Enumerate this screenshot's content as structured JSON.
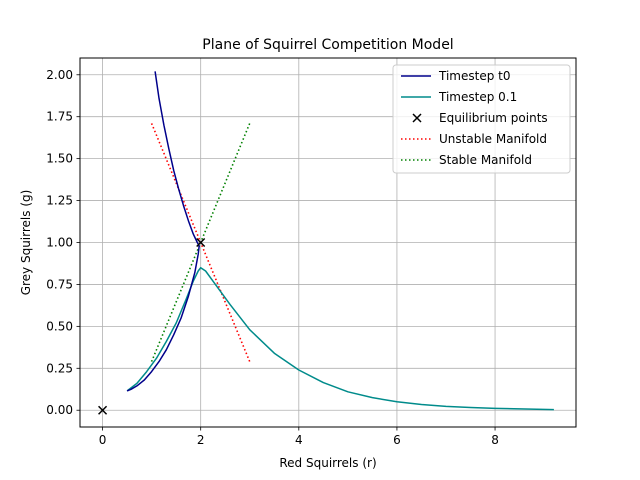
{
  "chart_data": {
    "type": "line",
    "title": "Plane of Squirrel Competition Model",
    "xlabel": "Red Squirrels (r)",
    "ylabel": "Grey Squirrels (g)",
    "xlim": [
      -0.46,
      9.65
    ],
    "ylim": [
      -0.1,
      2.1
    ],
    "xticks": [
      0,
      2,
      4,
      6,
      8
    ],
    "yticks": [
      0.0,
      0.25,
      0.5,
      0.75,
      1.0,
      1.25,
      1.5,
      1.75,
      2.0
    ],
    "xtick_labels": [
      "0",
      "2",
      "4",
      "6",
      "8"
    ],
    "ytick_labels": [
      "0.00",
      "0.25",
      "0.50",
      "0.75",
      "1.00",
      "1.25",
      "1.50",
      "1.75",
      "2.00"
    ],
    "grid": true,
    "legend_position": "top-right",
    "series": [
      {
        "name": "Timestep t0",
        "style": "solid",
        "color": "#00008b",
        "x": [
          1.07,
          1.15,
          1.25,
          1.35,
          1.45,
          1.55,
          1.65,
          1.75,
          1.85,
          1.93,
          1.97,
          1.95,
          1.88,
          1.75,
          1.6,
          1.45,
          1.3,
          1.15,
          1.0,
          0.85,
          0.7,
          0.58,
          0.5
        ],
        "y": [
          2.02,
          1.86,
          1.7,
          1.56,
          1.43,
          1.32,
          1.22,
          1.13,
          1.05,
          1.0,
          0.98,
          0.93,
          0.82,
          0.68,
          0.55,
          0.45,
          0.36,
          0.29,
          0.23,
          0.18,
          0.145,
          0.125,
          0.115
        ]
      },
      {
        "name": "Timestep 0.1",
        "style": "solid",
        "color": "#008b8b",
        "x": [
          0.5,
          0.7,
          0.9,
          1.1,
          1.3,
          1.5,
          1.7,
          1.85,
          1.95,
          2.0,
          2.1,
          2.3,
          2.6,
          3.0,
          3.5,
          4.0,
          4.5,
          5.0,
          5.5,
          6.0,
          6.5,
          7.0,
          7.5,
          8.0,
          8.5,
          9.2
        ],
        "y": [
          0.115,
          0.16,
          0.23,
          0.31,
          0.41,
          0.52,
          0.66,
          0.77,
          0.83,
          0.85,
          0.83,
          0.75,
          0.63,
          0.48,
          0.34,
          0.24,
          0.165,
          0.11,
          0.075,
          0.05,
          0.034,
          0.023,
          0.016,
          0.011,
          0.008,
          0.004
        ]
      },
      {
        "name": "Equilibrium points",
        "style": "marker-x",
        "color": "#000000",
        "x": [
          0,
          2
        ],
        "y": [
          0,
          1
        ]
      },
      {
        "name": "Unstable Manifold",
        "style": "dotted",
        "color": "#ff0000",
        "x": [
          1.0,
          3.0
        ],
        "y": [
          1.71,
          0.29
        ]
      },
      {
        "name": "Stable Manifold",
        "style": "dotted",
        "color": "#008000",
        "x": [
          1.0,
          3.0
        ],
        "y": [
          0.29,
          1.71
        ]
      }
    ]
  }
}
